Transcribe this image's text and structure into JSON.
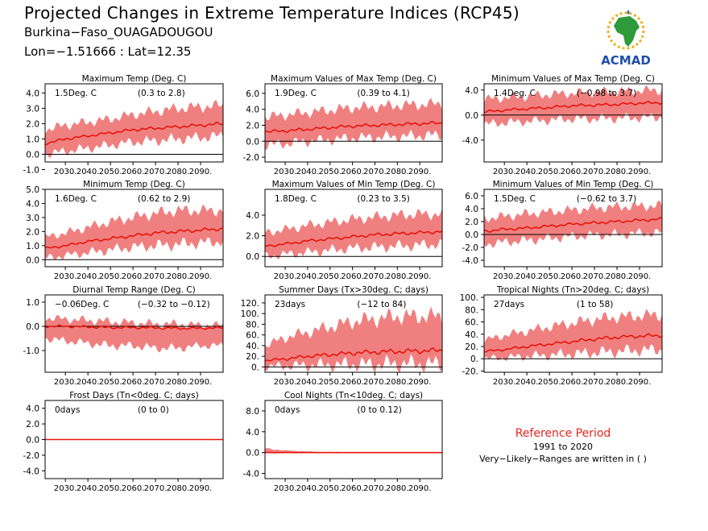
{
  "header": {
    "title": "Projected Changes in Extreme Temperature Indices (RCP45)",
    "station": "Burkina−Faso_OUAGADOUGOU",
    "coords": "Lon=−1.51666 : Lat=12.35"
  },
  "logo": {
    "text": "ACMAD",
    "icon": "africa-map-icon"
  },
  "note": {
    "reference_label": "Reference Period",
    "period": "1991 to 2020",
    "ranges_note": "Very−Likely−Ranges are written in ( )"
  },
  "colors": {
    "band": "#f08080",
    "line": "#e8140c",
    "axis": "#000000",
    "accent": "#e8261c"
  },
  "chart_data": [
    {
      "type": "area",
      "title": "Maximum Temp (Deg. C)",
      "annotation_value": "1.5Deg. C",
      "annotation_range": "(0.3 to 2.8)",
      "xlim": [
        2021,
        2100
      ],
      "ylim": [
        -0.5,
        4.6
      ],
      "xticks": [
        "2030.",
        "2040.",
        "2050.",
        "2060.",
        "2070.",
        "2080.",
        "2090."
      ],
      "yticks": [
        "-1.0",
        "0.0",
        "1.0",
        "2.0",
        "3.0",
        "4.0"
      ],
      "series": [
        {
          "role": "median",
          "x": [
            2021,
            2030,
            2040,
            2050,
            2060,
            2070,
            2080,
            2090,
            2100
          ],
          "y": [
            0.7,
            1.0,
            1.2,
            1.4,
            1.6,
            1.7,
            1.8,
            1.9,
            2.0
          ]
        },
        {
          "role": "lower",
          "x": [
            2021,
            2030,
            2040,
            2050,
            2060,
            2070,
            2080,
            2090,
            2100
          ],
          "y": [
            0.0,
            0.2,
            0.4,
            0.6,
            0.8,
            0.9,
            1.0,
            1.1,
            1.2
          ]
        },
        {
          "role": "upper",
          "x": [
            2021,
            2030,
            2040,
            2050,
            2060,
            2070,
            2080,
            2090,
            2100
          ],
          "y": [
            1.6,
            1.9,
            2.1,
            2.3,
            2.6,
            2.8,
            3.0,
            3.1,
            3.2
          ]
        }
      ]
    },
    {
      "type": "area",
      "title": "Maximum Values of Max Temp (Deg. C)",
      "annotation_value": "1.9Deg. C",
      "annotation_range": "(0.39 to 4.1)",
      "xlim": [
        2021,
        2100
      ],
      "ylim": [
        -2.6,
        7.2
      ],
      "xticks": [
        "2030.",
        "2040.",
        "2050.",
        "2060.",
        "2070.",
        "2080.",
        "2090."
      ],
      "yticks": [
        "-2.0",
        "0.0",
        "2.0",
        "4.0",
        "6.0"
      ],
      "series": [
        {
          "role": "median",
          "x": [
            2021,
            2030,
            2040,
            2050,
            2060,
            2070,
            2080,
            2090,
            2100
          ],
          "y": [
            1.2,
            1.3,
            1.5,
            1.7,
            1.9,
            2.0,
            2.1,
            2.2,
            2.3
          ]
        },
        {
          "role": "lower",
          "x": [
            2021,
            2030,
            2040,
            2050,
            2060,
            2070,
            2080,
            2090,
            2100
          ],
          "y": [
            -0.5,
            -0.3,
            0.0,
            0.2,
            0.4,
            0.5,
            0.6,
            0.7,
            0.8
          ]
        },
        {
          "role": "upper",
          "x": [
            2021,
            2030,
            2040,
            2050,
            2060,
            2070,
            2080,
            2090,
            2100
          ],
          "y": [
            3.0,
            3.3,
            3.6,
            3.9,
            4.2,
            4.3,
            4.5,
            4.6,
            4.7
          ]
        }
      ]
    },
    {
      "type": "area",
      "title": "Minimum Values of Max Temp (Deg. C)",
      "annotation_value": "1.4Deg. C",
      "annotation_range": "(−0.98 to 3.7)",
      "xlim": [
        2021,
        2100
      ],
      "ylim": [
        -7.5,
        5.0
      ],
      "xticks": [
        "2030.",
        "2040.",
        "2050.",
        "2060.",
        "2070.",
        "2080.",
        "2090."
      ],
      "yticks": [
        "-4.0",
        "0.0",
        "4.0"
      ],
      "series": [
        {
          "role": "median",
          "x": [
            2021,
            2030,
            2040,
            2050,
            2060,
            2070,
            2080,
            2090,
            2100
          ],
          "y": [
            0.5,
            0.8,
            1.0,
            1.2,
            1.5,
            1.6,
            1.7,
            1.9,
            2.0
          ]
        },
        {
          "role": "lower",
          "x": [
            2021,
            2030,
            2040,
            2050,
            2060,
            2070,
            2080,
            2090,
            2100
          ],
          "y": [
            -1.5,
            -1.2,
            -1.0,
            -0.8,
            -0.6,
            -0.6,
            -0.5,
            -0.4,
            -0.3
          ]
        },
        {
          "role": "upper",
          "x": [
            2021,
            2030,
            2040,
            2050,
            2060,
            2070,
            2080,
            2090,
            2100
          ],
          "y": [
            2.5,
            2.8,
            3.0,
            3.3,
            3.5,
            3.7,
            3.8,
            3.9,
            4.0
          ]
        }
      ]
    },
    {
      "type": "area",
      "title": "Minimum Temp (Deg. C)",
      "annotation_value": "1.6Deg. C",
      "annotation_range": "(0.62 to 2.9)",
      "xlim": [
        2021,
        2100
      ],
      "ylim": [
        -0.5,
        5.0
      ],
      "xticks": [
        "2030.",
        "2040.",
        "2050.",
        "2060.",
        "2070.",
        "2080.",
        "2090."
      ],
      "yticks": [
        "0.0",
        "1.0",
        "2.0",
        "3.0",
        "4.0",
        "5.0"
      ],
      "series": [
        {
          "role": "median",
          "x": [
            2021,
            2030,
            2040,
            2050,
            2060,
            2070,
            2080,
            2090,
            2100
          ],
          "y": [
            0.8,
            1.0,
            1.3,
            1.5,
            1.7,
            1.9,
            2.0,
            2.1,
            2.2
          ]
        },
        {
          "role": "lower",
          "x": [
            2021,
            2030,
            2040,
            2050,
            2060,
            2070,
            2080,
            2090,
            2100
          ],
          "y": [
            0.1,
            0.3,
            0.5,
            0.7,
            0.9,
            1.0,
            1.1,
            1.2,
            1.3
          ]
        },
        {
          "role": "upper",
          "x": [
            2021,
            2030,
            2040,
            2050,
            2060,
            2070,
            2080,
            2090,
            2100
          ],
          "y": [
            1.6,
            1.9,
            2.3,
            2.7,
            3.0,
            3.3,
            3.5,
            3.5,
            3.5
          ]
        }
      ]
    },
    {
      "type": "area",
      "title": "Maximum Values of Min Temp (Deg. C)",
      "annotation_value": "1.8Deg. C",
      "annotation_range": "(0.23 to 3.5)",
      "xlim": [
        2021,
        2100
      ],
      "ylim": [
        -1.0,
        6.5
      ],
      "xticks": [
        "2030.",
        "2040.",
        "2050.",
        "2060.",
        "2070.",
        "2080.",
        "2090."
      ],
      "yticks": [
        "0.0",
        "2.0",
        "4.0"
      ],
      "series": [
        {
          "role": "median",
          "x": [
            2021,
            2030,
            2040,
            2050,
            2060,
            2070,
            2080,
            2090,
            2100
          ],
          "y": [
            1.0,
            1.2,
            1.5,
            1.7,
            1.9,
            2.1,
            2.2,
            2.3,
            2.4
          ]
        },
        {
          "role": "lower",
          "x": [
            2021,
            2030,
            2040,
            2050,
            2060,
            2070,
            2080,
            2090,
            2100
          ],
          "y": [
            0.0,
            0.2,
            0.4,
            0.6,
            0.8,
            0.9,
            1.0,
            1.1,
            1.2
          ]
        },
        {
          "role": "upper",
          "x": [
            2021,
            2030,
            2040,
            2050,
            2060,
            2070,
            2080,
            2090,
            2100
          ],
          "y": [
            2.3,
            2.6,
            3.0,
            3.3,
            3.6,
            3.8,
            4.0,
            4.1,
            4.1
          ]
        }
      ]
    },
    {
      "type": "area",
      "title": "Minimum Values of Min Temp (Deg. C)",
      "annotation_value": "1.5Deg. C",
      "annotation_range": "(−0.62 to 3.7)",
      "xlim": [
        2021,
        2100
      ],
      "ylim": [
        -5.0,
        7.0
      ],
      "xticks": [
        "2030.",
        "2040.",
        "2050.",
        "2060.",
        "2070.",
        "2080.",
        "2090."
      ],
      "yticks": [
        "-4.0",
        "-2.0",
        "0.0",
        "2.0",
        "4.0",
        "6.0"
      ],
      "series": [
        {
          "role": "median",
          "x": [
            2021,
            2030,
            2040,
            2050,
            2060,
            2070,
            2080,
            2090,
            2100
          ],
          "y": [
            0.5,
            0.8,
            1.0,
            1.3,
            1.6,
            1.8,
            2.0,
            2.2,
            2.4
          ]
        },
        {
          "role": "lower",
          "x": [
            2021,
            2030,
            2040,
            2050,
            2060,
            2070,
            2080,
            2090,
            2100
          ],
          "y": [
            -1.5,
            -1.2,
            -0.9,
            -0.6,
            -0.3,
            -0.1,
            0.0,
            0.2,
            0.3
          ]
        },
        {
          "role": "upper",
          "x": [
            2021,
            2030,
            2040,
            2050,
            2060,
            2070,
            2080,
            2090,
            2100
          ],
          "y": [
            2.5,
            2.8,
            3.2,
            3.5,
            3.8,
            4.1,
            4.3,
            4.4,
            4.5
          ]
        }
      ]
    },
    {
      "type": "area",
      "title": "Diurnal Temp Range (Deg. C)",
      "annotation_value": "−0.06Deg. C",
      "annotation_range": "(−0.32 to −0.12)",
      "xlim": [
        2021,
        2100
      ],
      "ylim": [
        -1.9,
        1.3
      ],
      "xticks": [
        "2030.",
        "2040.",
        "2050.",
        "2060.",
        "2070.",
        "2080.",
        "2090."
      ],
      "yticks": [
        "-1.0",
        "0.0",
        "1.0"
      ],
      "series": [
        {
          "role": "median",
          "x": [
            2021,
            2030,
            2040,
            2050,
            2060,
            2070,
            2080,
            2090,
            2100
          ],
          "y": [
            0.0,
            0.0,
            -0.02,
            -0.05,
            -0.05,
            -0.06,
            -0.08,
            -0.08,
            -0.06
          ]
        },
        {
          "role": "lower",
          "x": [
            2021,
            2030,
            2040,
            2050,
            2060,
            2070,
            2080,
            2090,
            2100
          ],
          "y": [
            -0.5,
            -0.6,
            -0.7,
            -0.8,
            -0.8,
            -0.9,
            -0.9,
            -0.8,
            -0.8
          ]
        },
        {
          "role": "upper",
          "x": [
            2021,
            2030,
            2040,
            2050,
            2060,
            2070,
            2080,
            2090,
            2100
          ],
          "y": [
            0.35,
            0.3,
            0.25,
            0.2,
            0.15,
            0.1,
            0.1,
            0.05,
            0.05
          ]
        }
      ]
    },
    {
      "type": "area",
      "title": "Summer Days (Tx>30deg. C; days)",
      "annotation_value": "23days",
      "annotation_range": "(−12 to 84)",
      "xlim": [
        2021,
        2100
      ],
      "ylim": [
        -10,
        135
      ],
      "xticks": [
        "2030.",
        "2040.",
        "2050.",
        "2060.",
        "2070.",
        "2080.",
        "2090."
      ],
      "yticks": [
        "0.",
        "20.",
        "40.",
        "60.",
        "80.",
        "100.",
        "120."
      ],
      "series": [
        {
          "role": "median",
          "x": [
            2021,
            2030,
            2040,
            2050,
            2060,
            2070,
            2080,
            2090,
            2100
          ],
          "y": [
            12,
            15,
            20,
            23,
            26,
            28,
            29,
            30,
            31
          ]
        },
        {
          "role": "lower",
          "x": [
            2021,
            2030,
            2040,
            2050,
            2060,
            2070,
            2080,
            2090,
            2100
          ],
          "y": [
            0,
            2,
            3,
            4,
            5,
            5,
            6,
            6,
            6
          ]
        },
        {
          "role": "upper",
          "x": [
            2021,
            2030,
            2040,
            2050,
            2060,
            2070,
            2080,
            2090,
            2100
          ],
          "y": [
            40,
            55,
            65,
            75,
            85,
            90,
            95,
            95,
            95
          ]
        }
      ]
    },
    {
      "type": "area",
      "title": "Tropical Nights (Tn>20deg. C; days)",
      "annotation_value": "27days",
      "annotation_range": "(1 to 58)",
      "xlim": [
        2021,
        2100
      ],
      "ylim": [
        -22,
        104
      ],
      "xticks": [
        "2030.",
        "2040.",
        "2050.",
        "2060.",
        "2070.",
        "2080.",
        "2090."
      ],
      "yticks": [
        "-20.",
        "0.",
        "20.",
        "40.",
        "60.",
        "80.",
        "100."
      ],
      "series": [
        {
          "role": "median",
          "x": [
            2021,
            2030,
            2040,
            2050,
            2060,
            2070,
            2080,
            2090,
            2100
          ],
          "y": [
            12,
            15,
            20,
            24,
            28,
            32,
            35,
            37,
            38
          ]
        },
        {
          "role": "lower",
          "x": [
            2021,
            2030,
            2040,
            2050,
            2060,
            2070,
            2080,
            2090,
            2100
          ],
          "y": [
            0,
            2,
            4,
            6,
            8,
            10,
            12,
            14,
            15
          ]
        },
        {
          "role": "upper",
          "x": [
            2021,
            2030,
            2040,
            2050,
            2060,
            2070,
            2080,
            2090,
            2100
          ],
          "y": [
            30,
            38,
            45,
            52,
            58,
            64,
            68,
            70,
            72
          ]
        }
      ]
    },
    {
      "type": "line",
      "title": "Frost Days (Tn<0deg. C; days)",
      "annotation_value": "0days",
      "annotation_range": "(0 to 0)",
      "xlim": [
        2021,
        2100
      ],
      "ylim": [
        -5.0,
        5.0
      ],
      "xticks": [
        "2030.",
        "2040.",
        "2050.",
        "2060.",
        "2070.",
        "2080.",
        "2090."
      ],
      "yticks": [
        "-4.0",
        "-2.0",
        "0.0",
        "2.0",
        "4.0"
      ],
      "series": [
        {
          "role": "median",
          "x": [
            2021,
            2100
          ],
          "y": [
            0,
            0
          ]
        },
        {
          "role": "lower",
          "x": [
            2021,
            2100
          ],
          "y": [
            0,
            0
          ]
        },
        {
          "role": "upper",
          "x": [
            2021,
            2100
          ],
          "y": [
            0,
            0
          ]
        }
      ]
    },
    {
      "type": "line",
      "title": "Cool Nights (Tn<10deg. C; days)",
      "annotation_value": "0days",
      "annotation_range": "(0 to 0.12)",
      "xlim": [
        2021,
        2100
      ],
      "ylim": [
        -5.0,
        10.0
      ],
      "xticks": [
        "2030.",
        "2040.",
        "2050.",
        "2060.",
        "2070.",
        "2080.",
        "2090."
      ],
      "yticks": [
        "-4.0",
        "0.0",
        "4.0",
        "8.0"
      ],
      "series": [
        {
          "role": "median",
          "x": [
            2021,
            2030,
            2040,
            2050,
            2060,
            2070,
            2080,
            2090,
            2100
          ],
          "y": [
            0,
            0,
            0,
            0,
            0,
            0,
            0,
            0,
            0
          ]
        },
        {
          "role": "lower",
          "x": [
            2021,
            2030,
            2040,
            2050,
            2060,
            2070,
            2080,
            2090,
            2100
          ],
          "y": [
            0,
            0,
            0,
            0,
            0,
            0,
            0,
            0,
            0
          ]
        },
        {
          "role": "upper",
          "x": [
            2021,
            2030,
            2040,
            2050,
            2060,
            2070,
            2080,
            2090,
            2100
          ],
          "y": [
            0.8,
            0.4,
            0.2,
            0.1,
            0.05,
            0.02,
            0.02,
            0.01,
            0.0
          ]
        }
      ]
    }
  ]
}
